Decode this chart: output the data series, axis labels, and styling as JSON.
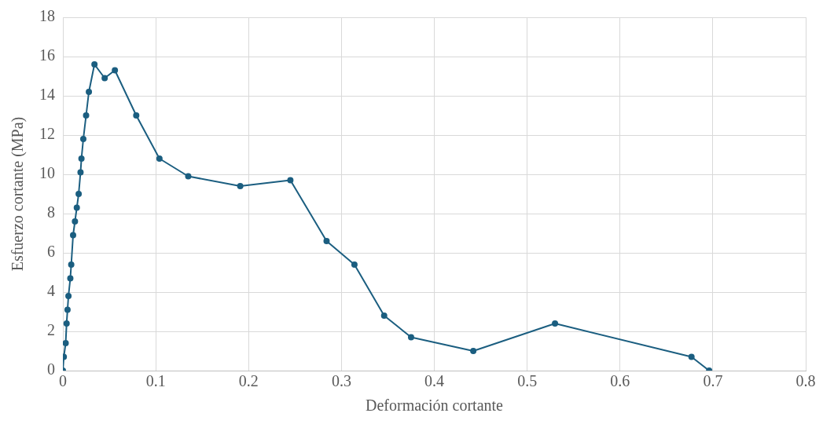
{
  "chart_data": {
    "type": "line",
    "xlabel": "Deformación cortante",
    "ylabel": "Esfuerzo cortante (MPa)",
    "x": [
      0,
      0.001,
      0.003,
      0.004,
      0.005,
      0.006,
      0.008,
      0.009,
      0.011,
      0.013,
      0.015,
      0.017,
      0.019,
      0.02,
      0.022,
      0.025,
      0.028,
      0.034,
      0.045,
      0.056,
      0.079,
      0.104,
      0.135,
      0.191,
      0.245,
      0.284,
      0.314,
      0.346,
      0.375,
      0.442,
      0.53,
      0.677,
      0.696
    ],
    "series": [
      {
        "color": "#1b5e80",
        "values": [
          0,
          0.7,
          1.4,
          2.4,
          3.1,
          3.8,
          4.7,
          5.4,
          6.9,
          7.6,
          8.3,
          9.0,
          10.1,
          10.8,
          11.8,
          13.0,
          14.2,
          15.6,
          14.9,
          15.3,
          13.0,
          10.8,
          9.9,
          9.4,
          9.7,
          6.6,
          5.4,
          2.8,
          1.7,
          1.0,
          2.4,
          0.7,
          0
        ]
      }
    ],
    "xlim": [
      0,
      0.8
    ],
    "xticks": [
      0,
      0.1,
      0.2,
      0.3,
      0.4,
      0.5,
      0.6,
      0.7,
      0.8
    ],
    "ylim": [
      0,
      18
    ],
    "yticks": [
      0,
      2,
      4,
      6,
      8,
      10,
      12,
      14,
      16,
      18
    ],
    "grid": true,
    "legend": false,
    "marker": "circle",
    "line_style": "solid"
  }
}
